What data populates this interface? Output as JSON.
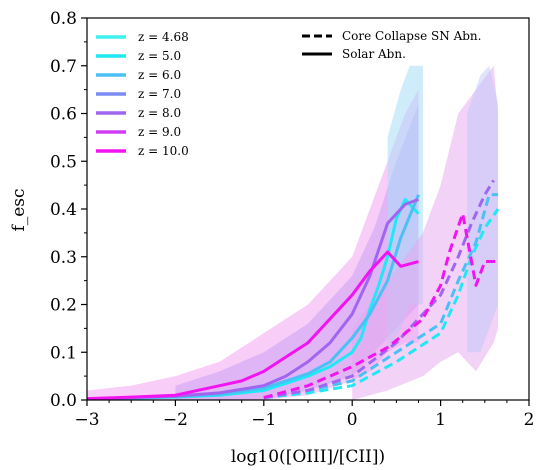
{
  "chart_data": {
    "type": "line",
    "title": "",
    "xlabel": "log10([OIII]/[CII])",
    "ylabel": "f_esc",
    "xlim": [
      -3,
      2
    ],
    "ylim": [
      0,
      0.8
    ],
    "xticks": [
      -3,
      -2,
      -1,
      0,
      1,
      2
    ],
    "yticks": [
      0.0,
      0.1,
      0.2,
      0.3,
      0.4,
      0.5,
      0.6,
      0.7,
      0.8
    ],
    "xtick_labels": [
      "−3",
      "−2",
      "−1",
      "0",
      "1",
      "2"
    ],
    "ytick_labels": [
      "0.0",
      "0.1",
      "0.2",
      "0.3",
      "0.4",
      "0.5",
      "0.6",
      "0.7",
      "0.8"
    ],
    "grid": false,
    "legend_redshift": {
      "placement": "top-left",
      "entries": [
        {
          "label": "z = 4.68",
          "color": "#3ff0f0"
        },
        {
          "label": "z = 5.0",
          "color": "#20e8f4"
        },
        {
          "label": "z = 6.0",
          "color": "#4cc0f4"
        },
        {
          "label": "z = 7.0",
          "color": "#7b8cf4"
        },
        {
          "label": "z = 8.0",
          "color": "#a066f0"
        },
        {
          "label": "z = 9.0",
          "color": "#cf3ef0"
        },
        {
          "label": "z = 10.0",
          "color": "#f214f0"
        }
      ]
    },
    "legend_linestyle": {
      "placement": "top-right",
      "entries": [
        {
          "label": "Core Collapse SN Abn.",
          "style": "dashed"
        },
        {
          "label": "Solar Abn.",
          "style": "solid"
        }
      ]
    },
    "series": [
      {
        "name": "z = 5.0 Solar",
        "color": "#20e8f4",
        "style": "solid",
        "x": [
          -3.0,
          -2.5,
          -2.0,
          -1.5,
          -1.0,
          -0.75,
          -0.5,
          -0.25,
          0.0,
          0.1,
          0.2,
          0.3,
          0.4,
          0.5,
          0.6,
          0.75
        ],
        "y": [
          0.002,
          0.004,
          0.006,
          0.01,
          0.02,
          0.035,
          0.05,
          0.07,
          0.1,
          0.13,
          0.19,
          0.24,
          0.3,
          0.38,
          0.42,
          0.39
        ]
      },
      {
        "name": "z = 6.0 Solar",
        "color": "#4cc0f4",
        "style": "solid",
        "x": [
          -3.0,
          -2.5,
          -2.0,
          -1.5,
          -1.0,
          -0.75,
          -0.5,
          -0.25,
          0.0,
          0.2,
          0.4,
          0.55,
          0.75
        ],
        "y": [
          0.002,
          0.004,
          0.007,
          0.012,
          0.025,
          0.04,
          0.055,
          0.08,
          0.13,
          0.18,
          0.25,
          0.34,
          0.43
        ]
      },
      {
        "name": "z = 8.0 Solar",
        "color": "#a066f0",
        "style": "solid",
        "x": [
          -3.0,
          -2.5,
          -2.0,
          -1.5,
          -1.0,
          -0.75,
          -0.5,
          -0.25,
          0.0,
          0.2,
          0.4,
          0.6,
          0.75
        ],
        "y": [
          0.002,
          0.005,
          0.008,
          0.015,
          0.03,
          0.05,
          0.08,
          0.12,
          0.18,
          0.26,
          0.37,
          0.41,
          0.42
        ]
      },
      {
        "name": "z = 10.0 Solar",
        "color": "#f214f0",
        "style": "solid",
        "x": [
          -3.0,
          -2.5,
          -2.0,
          -1.75,
          -1.5,
          -1.25,
          -1.0,
          -0.75,
          -0.5,
          -0.25,
          0.0,
          0.2,
          0.4,
          0.55,
          0.75
        ],
        "y": [
          0.003,
          0.006,
          0.01,
          0.02,
          0.03,
          0.04,
          0.06,
          0.09,
          0.12,
          0.17,
          0.22,
          0.27,
          0.31,
          0.28,
          0.29
        ]
      },
      {
        "name": "z = 5.0 CCSN",
        "color": "#20e8f4",
        "style": "dashed",
        "x": [
          -1.0,
          -0.5,
          0.0,
          0.5,
          1.0,
          1.2,
          1.35,
          1.5,
          1.65
        ],
        "y": [
          0.005,
          0.015,
          0.03,
          0.08,
          0.14,
          0.22,
          0.3,
          0.36,
          0.4
        ]
      },
      {
        "name": "z = 6.0 CCSN",
        "color": "#4cc0f4",
        "style": "dashed",
        "x": [
          -1.0,
          -0.5,
          0.0,
          0.5,
          1.0,
          1.2,
          1.4,
          1.55,
          1.65
        ],
        "y": [
          0.005,
          0.02,
          0.04,
          0.1,
          0.16,
          0.25,
          0.33,
          0.43,
          0.43
        ]
      },
      {
        "name": "z = 8.0 CCSN",
        "color": "#a066f0",
        "style": "dashed",
        "x": [
          -1.0,
          -0.5,
          0.0,
          0.5,
          1.0,
          1.2,
          1.35,
          1.5,
          1.6
        ],
        "y": [
          0.005,
          0.02,
          0.05,
          0.12,
          0.22,
          0.3,
          0.37,
          0.43,
          0.46
        ]
      },
      {
        "name": "z = 10.0 CCSN",
        "color": "#f214f0",
        "style": "dashed",
        "x": [
          -1.0,
          -0.5,
          0.0,
          0.4,
          0.8,
          1.0,
          1.1,
          1.25,
          1.4,
          1.5,
          1.65
        ],
        "y": [
          0.005,
          0.03,
          0.07,
          0.11,
          0.17,
          0.24,
          0.31,
          0.39,
          0.24,
          0.29,
          0.29
        ]
      }
    ],
    "bands": [
      {
        "color": "#f3a6f3",
        "opacity": 0.55,
        "x": [
          -3.0,
          -2.5,
          -2.0,
          -1.5,
          -1.0,
          -0.5,
          0.0,
          0.2,
          0.4,
          0.6,
          0.75
        ],
        "low": [
          0.0,
          0.0,
          0.0,
          0.0,
          0.0,
          0.01,
          0.04,
          0.06,
          0.1,
          0.12,
          0.12
        ],
        "high": [
          0.02,
          0.03,
          0.05,
          0.08,
          0.14,
          0.2,
          0.3,
          0.4,
          0.5,
          0.6,
          0.65
        ]
      },
      {
        "color": "#c59bf2",
        "opacity": 0.5,
        "x": [
          -2.0,
          -1.5,
          -1.0,
          -0.5,
          0.0,
          0.25,
          0.5,
          0.75
        ],
        "low": [
          0.0,
          0.0,
          0.0,
          0.02,
          0.05,
          0.1,
          0.15,
          0.2
        ],
        "high": [
          0.03,
          0.06,
          0.1,
          0.16,
          0.26,
          0.36,
          0.5,
          0.62
        ]
      },
      {
        "color": "#a8dcf8",
        "opacity": 0.55,
        "x": [
          0.4,
          0.55,
          0.65,
          0.8
        ],
        "low": [
          0.1,
          0.15,
          0.2,
          0.2
        ],
        "high": [
          0.55,
          0.65,
          0.7,
          0.7
        ]
      },
      {
        "color": "#e8a6f0",
        "opacity": 0.5,
        "x": [
          0.0,
          0.4,
          0.8,
          1.0,
          1.2,
          1.4,
          1.6,
          1.65
        ],
        "low": [
          0.0,
          0.02,
          0.05,
          0.08,
          0.1,
          0.06,
          0.12,
          0.15
        ],
        "high": [
          0.15,
          0.25,
          0.35,
          0.45,
          0.6,
          0.65,
          0.7,
          0.6
        ]
      },
      {
        "color": "#b8c8f8",
        "opacity": 0.45,
        "x": [
          1.3,
          1.45,
          1.55,
          1.65
        ],
        "low": [
          0.1,
          0.1,
          0.15,
          0.2
        ],
        "high": [
          0.6,
          0.68,
          0.7,
          0.62
        ]
      }
    ]
  }
}
